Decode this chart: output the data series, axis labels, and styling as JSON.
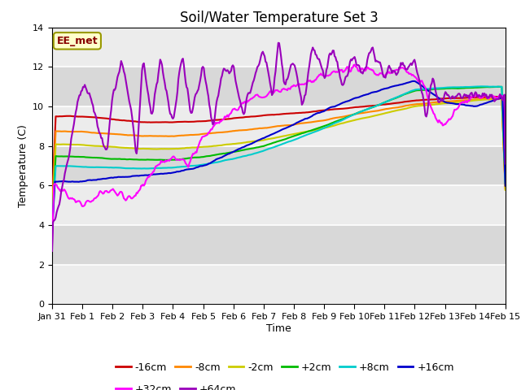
{
  "title": "Soil/Water Temperature Set 3",
  "ylabel": "Temperature (C)",
  "xlabel": "Time",
  "annotation": "EE_met",
  "ylim": [
    0,
    14
  ],
  "yticks": [
    0,
    2,
    4,
    6,
    8,
    10,
    12,
    14
  ],
  "series": {
    "-16cm": {
      "color": "#cc0000"
    },
    "-8cm": {
      "color": "#ff8800"
    },
    "-2cm": {
      "color": "#cccc00"
    },
    "+2cm": {
      "color": "#00bb00"
    },
    "+8cm": {
      "color": "#00cccc"
    },
    "+16cm": {
      "color": "#0000cc"
    },
    "+32cm": {
      "color": "#ff00ff"
    },
    "+64cm": {
      "color": "#9900bb"
    }
  },
  "xtick_labels": [
    "Jan 31",
    "Feb 1",
    "Feb 2",
    "Feb 3",
    "Feb 4",
    "Feb 5",
    "Feb 6",
    "Feb 7",
    "Feb 8",
    "Feb 9",
    "Feb 10",
    "Feb 11",
    "Feb 12",
    "Feb 13",
    "Feb 14",
    "Feb 15"
  ],
  "xtick_positions": [
    0,
    1,
    2,
    3,
    4,
    5,
    6,
    7,
    8,
    9,
    10,
    11,
    12,
    13,
    14,
    15
  ],
  "title_fontsize": 12,
  "axis_label_fontsize": 9,
  "tick_fontsize": 8,
  "legend_fontsize": 9,
  "lw": 1.5
}
